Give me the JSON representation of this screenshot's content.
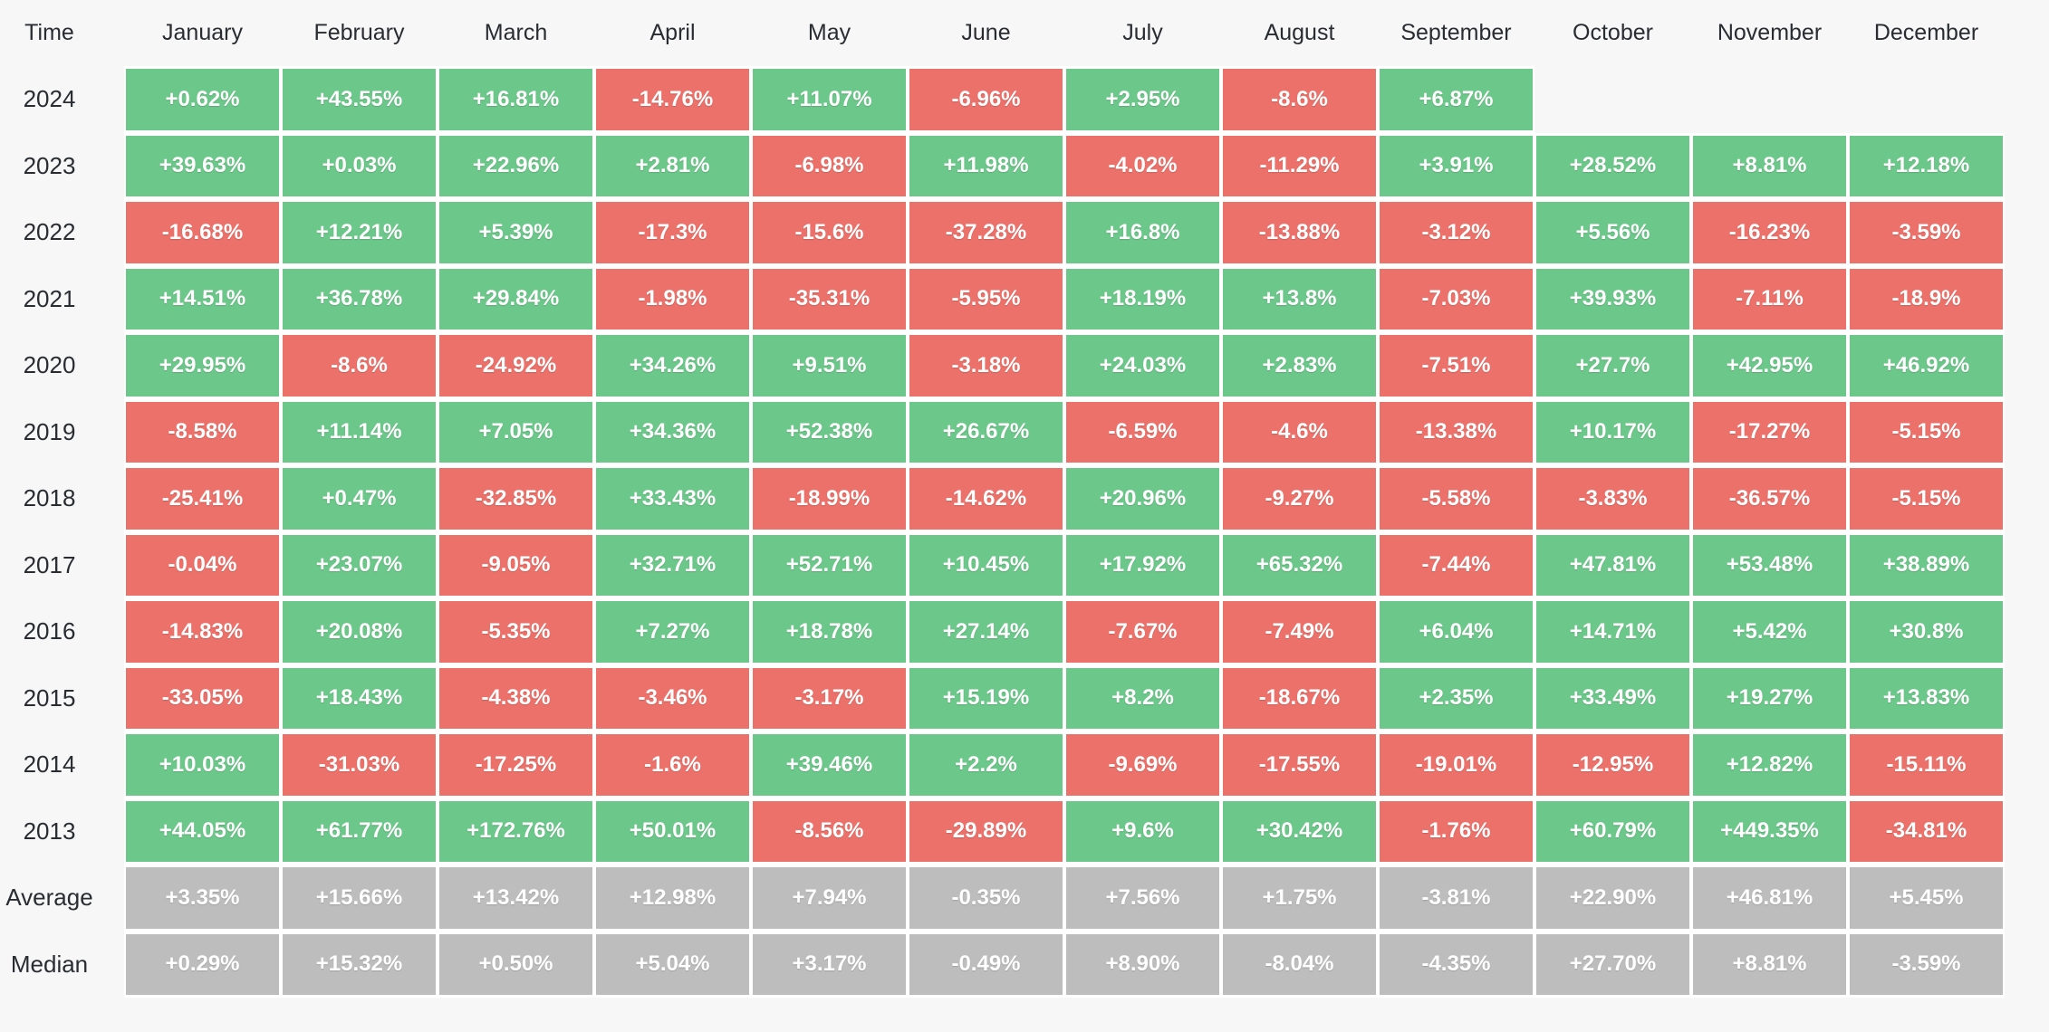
{
  "page": {
    "background": "#f7f7f7"
  },
  "colors": {
    "bg": "#f7f7f7",
    "positive": "#6cc78a",
    "negative": "#ec716a",
    "summary": "#bdbdbd",
    "gap": "#ffffff",
    "label_text": "#292d32",
    "cell_text": "#ffffff"
  },
  "table": {
    "corner_label": "Time",
    "months": [
      "January",
      "February",
      "March",
      "April",
      "May",
      "June",
      "July",
      "August",
      "September",
      "October",
      "November",
      "December"
    ],
    "rows": [
      {
        "label": "2024",
        "kind": "year",
        "values": [
          "+0.62%",
          "+43.55%",
          "+16.81%",
          "-14.76%",
          "+11.07%",
          "-6.96%",
          "+2.95%",
          "-8.6%",
          "+6.87%",
          null,
          null,
          null
        ]
      },
      {
        "label": "2023",
        "kind": "year",
        "values": [
          "+39.63%",
          "+0.03%",
          "+22.96%",
          "+2.81%",
          "-6.98%",
          "+11.98%",
          "-4.02%",
          "-11.29%",
          "+3.91%",
          "+28.52%",
          "+8.81%",
          "+12.18%"
        ]
      },
      {
        "label": "2022",
        "kind": "year",
        "values": [
          "-16.68%",
          "+12.21%",
          "+5.39%",
          "-17.3%",
          "-15.6%",
          "-37.28%",
          "+16.8%",
          "-13.88%",
          "-3.12%",
          "+5.56%",
          "-16.23%",
          "-3.59%"
        ]
      },
      {
        "label": "2021",
        "kind": "year",
        "values": [
          "+14.51%",
          "+36.78%",
          "+29.84%",
          "-1.98%",
          "-35.31%",
          "-5.95%",
          "+18.19%",
          "+13.8%",
          "-7.03%",
          "+39.93%",
          "-7.11%",
          "-18.9%"
        ]
      },
      {
        "label": "2020",
        "kind": "year",
        "values": [
          "+29.95%",
          "-8.6%",
          "-24.92%",
          "+34.26%",
          "+9.51%",
          "-3.18%",
          "+24.03%",
          "+2.83%",
          "-7.51%",
          "+27.7%",
          "+42.95%",
          "+46.92%"
        ]
      },
      {
        "label": "2019",
        "kind": "year",
        "values": [
          "-8.58%",
          "+11.14%",
          "+7.05%",
          "+34.36%",
          "+52.38%",
          "+26.67%",
          "-6.59%",
          "-4.6%",
          "-13.38%",
          "+10.17%",
          "-17.27%",
          "-5.15%"
        ]
      },
      {
        "label": "2018",
        "kind": "year",
        "values": [
          "-25.41%",
          "+0.47%",
          "-32.85%",
          "+33.43%",
          "-18.99%",
          "-14.62%",
          "+20.96%",
          "-9.27%",
          "-5.58%",
          "-3.83%",
          "-36.57%",
          "-5.15%"
        ]
      },
      {
        "label": "2017",
        "kind": "year",
        "values": [
          "-0.04%",
          "+23.07%",
          "-9.05%",
          "+32.71%",
          "+52.71%",
          "+10.45%",
          "+17.92%",
          "+65.32%",
          "-7.44%",
          "+47.81%",
          "+53.48%",
          "+38.89%"
        ]
      },
      {
        "label": "2016",
        "kind": "year",
        "values": [
          "-14.83%",
          "+20.08%",
          "-5.35%",
          "+7.27%",
          "+18.78%",
          "+27.14%",
          "-7.67%",
          "-7.49%",
          "+6.04%",
          "+14.71%",
          "+5.42%",
          "+30.8%"
        ]
      },
      {
        "label": "2015",
        "kind": "year",
        "values": [
          "-33.05%",
          "+18.43%",
          "-4.38%",
          "-3.46%",
          "-3.17%",
          "+15.19%",
          "+8.2%",
          "-18.67%",
          "+2.35%",
          "+33.49%",
          "+19.27%",
          "+13.83%"
        ]
      },
      {
        "label": "2014",
        "kind": "year",
        "values": [
          "+10.03%",
          "-31.03%",
          "-17.25%",
          "-1.6%",
          "+39.46%",
          "+2.2%",
          "-9.69%",
          "-17.55%",
          "-19.01%",
          "-12.95%",
          "+12.82%",
          "-15.11%"
        ]
      },
      {
        "label": "2013",
        "kind": "year",
        "values": [
          "+44.05%",
          "+61.77%",
          "+172.76%",
          "+50.01%",
          "-8.56%",
          "-29.89%",
          "+9.6%",
          "+30.42%",
          "-1.76%",
          "+60.79%",
          "+449.35%",
          "-34.81%"
        ]
      },
      {
        "label": "Average",
        "kind": "summary",
        "values": [
          "+3.35%",
          "+15.66%",
          "+13.42%",
          "+12.98%",
          "+7.94%",
          "-0.35%",
          "+7.56%",
          "+1.75%",
          "-3.81%",
          "+22.90%",
          "+46.81%",
          "+5.45%"
        ]
      },
      {
        "label": "Median",
        "kind": "summary",
        "values": [
          "+0.29%",
          "+15.32%",
          "+0.50%",
          "+5.04%",
          "+3.17%",
          "-0.49%",
          "+8.90%",
          "-8.04%",
          "-4.35%",
          "+27.70%",
          "+8.81%",
          "-3.59%"
        ]
      }
    ]
  },
  "chart_data": {
    "type": "heatmap",
    "x_categories": [
      "January",
      "February",
      "March",
      "April",
      "May",
      "June",
      "July",
      "August",
      "September",
      "October",
      "November",
      "December"
    ],
    "y_categories": [
      "2024",
      "2023",
      "2022",
      "2021",
      "2020",
      "2019",
      "2018",
      "2017",
      "2016",
      "2015",
      "2014",
      "2013",
      "Average",
      "Median"
    ],
    "unit": "%",
    "values": [
      [
        0.62,
        43.55,
        16.81,
        -14.76,
        11.07,
        -6.96,
        2.95,
        -8.6,
        6.87,
        null,
        null,
        null
      ],
      [
        39.63,
        0.03,
        22.96,
        2.81,
        -6.98,
        11.98,
        -4.02,
        -11.29,
        3.91,
        28.52,
        8.81,
        12.18
      ],
      [
        -16.68,
        12.21,
        5.39,
        -17.3,
        -15.6,
        -37.28,
        16.8,
        -13.88,
        -3.12,
        5.56,
        -16.23,
        -3.59
      ],
      [
        14.51,
        36.78,
        29.84,
        -1.98,
        -35.31,
        -5.95,
        18.19,
        13.8,
        -7.03,
        39.93,
        -7.11,
        -18.9
      ],
      [
        29.95,
        -8.6,
        -24.92,
        34.26,
        9.51,
        -3.18,
        24.03,
        2.83,
        -7.51,
        27.7,
        42.95,
        46.92
      ],
      [
        -8.58,
        11.14,
        7.05,
        34.36,
        52.38,
        26.67,
        -6.59,
        -4.6,
        -13.38,
        10.17,
        -17.27,
        -5.15
      ],
      [
        -25.41,
        0.47,
        -32.85,
        33.43,
        -18.99,
        -14.62,
        20.96,
        -9.27,
        -5.58,
        -3.83,
        -36.57,
        -5.15
      ],
      [
        -0.04,
        23.07,
        -9.05,
        32.71,
        52.71,
        10.45,
        17.92,
        65.32,
        -7.44,
        47.81,
        53.48,
        38.89
      ],
      [
        -14.83,
        20.08,
        -5.35,
        7.27,
        18.78,
        27.14,
        -7.67,
        -7.49,
        6.04,
        14.71,
        5.42,
        30.8
      ],
      [
        -33.05,
        18.43,
        -4.38,
        -3.46,
        -3.17,
        15.19,
        8.2,
        -18.67,
        2.35,
        33.49,
        19.27,
        13.83
      ],
      [
        10.03,
        -31.03,
        -17.25,
        -1.6,
        39.46,
        2.2,
        -9.69,
        -17.55,
        -19.01,
        -12.95,
        12.82,
        -15.11
      ],
      [
        44.05,
        61.77,
        172.76,
        50.01,
        -8.56,
        -29.89,
        9.6,
        30.42,
        -1.76,
        60.79,
        449.35,
        -34.81
      ],
      [
        3.35,
        15.66,
        13.42,
        12.98,
        7.94,
        -0.35,
        7.56,
        1.75,
        -3.81,
        22.9,
        46.81,
        5.45
      ],
      [
        0.29,
        15.32,
        0.5,
        5.04,
        3.17,
        -0.49,
        8.9,
        -8.04,
        -4.35,
        27.7,
        8.81,
        -3.59
      ]
    ],
    "legend_position": "none",
    "grid": false,
    "color_rules": {
      "positive_cell": "#6cc78a",
      "negative_cell": "#ec716a",
      "summary_row_cell": "#bdbdbd",
      "missing_cell": "transparent"
    }
  }
}
